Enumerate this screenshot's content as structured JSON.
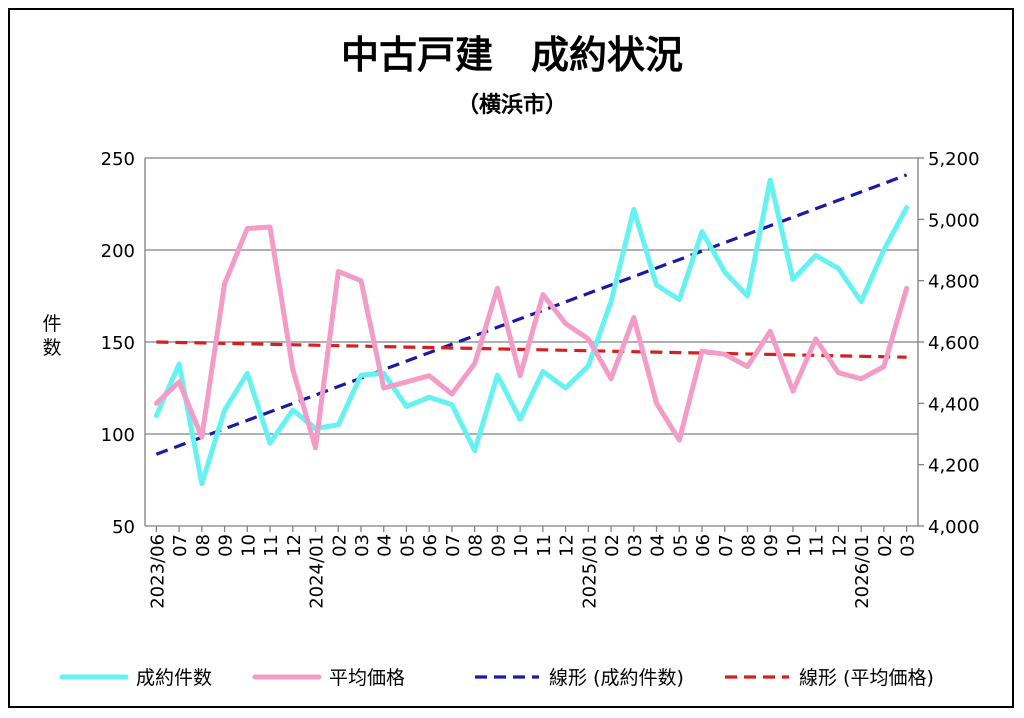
{
  "chart_data": {
    "type": "line",
    "title": "中古戸建　成約状況",
    "subtitle": "（横浜市）",
    "ylabel": "件数",
    "ylabel_right": "",
    "xlabel": "",
    "x": [
      "2023/06",
      "07",
      "08",
      "09",
      "10",
      "11",
      "12",
      "2024/01",
      "02",
      "03",
      "04",
      "05",
      "06",
      "07",
      "08",
      "09",
      "10",
      "11",
      "12",
      "2025/01",
      "02",
      "03",
      "04",
      "05",
      "06",
      "07",
      "08",
      "09",
      "10",
      "11",
      "12",
      "2026/01",
      "02",
      "03"
    ],
    "ylim": [
      50,
      250
    ],
    "yticks": [
      "50",
      "100",
      "150",
      "200",
      "250"
    ],
    "ylim_right": [
      4000,
      5200
    ],
    "yticks_right": [
      "4,000",
      "4,200",
      "4,400",
      "4,600",
      "4,800",
      "5,000",
      "5,200"
    ],
    "grid": true,
    "legend_position": "bottom",
    "series": [
      {
        "name": "成約件数",
        "axis": "left",
        "style": "solid",
        "color": "#66f2f2",
        "values": [
          110,
          138,
          73,
          113,
          133,
          95,
          113,
          103,
          105,
          132,
          133,
          115,
          120,
          116,
          91,
          132,
          108,
          134,
          125,
          137,
          172,
          222,
          181,
          173,
          210,
          188,
          175,
          238,
          184,
          197,
          190,
          172,
          200,
          223
        ]
      },
      {
        "name": "平均価格",
        "axis": "right",
        "style": "solid",
        "color": "#f49cc8",
        "values": [
          4400,
          4470,
          4290,
          4790,
          4970,
          4975,
          4510,
          4255,
          4830,
          4800,
          4450,
          4470,
          4490,
          4430,
          4530,
          4775,
          4490,
          4755,
          4660,
          4610,
          4480,
          4680,
          4400,
          4280,
          4570,
          4560,
          4520,
          4635,
          4440,
          4610,
          4500,
          4480,
          4520,
          4775
        ]
      },
      {
        "name": "線形 (成約件数)",
        "axis": "left",
        "style": "dashed",
        "color": "#1a1aa6",
        "values": [
          89,
          93.6,
          98.2,
          102.8,
          107.4,
          112,
          116.6,
          121.2,
          125.8,
          130.4,
          135,
          139.6,
          144.2,
          148.8,
          153.4,
          158,
          162.6,
          167.2,
          171.8,
          176.4,
          181,
          185.6,
          190.2,
          194.8,
          199.4,
          204,
          208.6,
          213.2,
          217.8,
          222.4,
          227,
          231.6,
          236.2,
          240.8
        ]
      },
      {
        "name": "線形 (平均価格)",
        "axis": "right",
        "style": "dashed",
        "color": "#d42020",
        "values": [
          4600,
          4598.5,
          4597,
          4595.5,
          4594,
          4592.5,
          4591,
          4589.5,
          4588,
          4586.5,
          4585,
          4583.5,
          4582,
          4580.5,
          4579,
          4577.5,
          4576,
          4574.5,
          4573,
          4571.5,
          4570,
          4568.5,
          4567,
          4565.5,
          4564,
          4562.5,
          4561,
          4559.5,
          4558,
          4556.5,
          4555,
          4553.5,
          4552,
          4550.5
        ]
      }
    ]
  }
}
